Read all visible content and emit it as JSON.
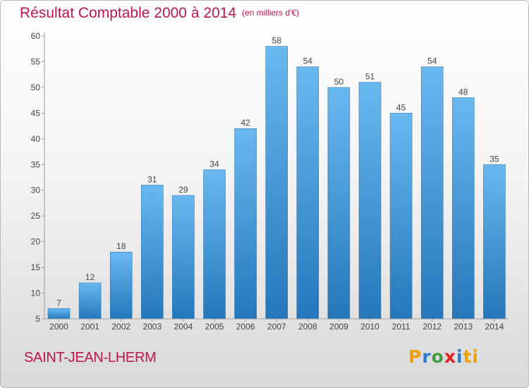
{
  "title": "Résultat Comptable 2000 à 2014",
  "subtitle": "(en milliers d'€)",
  "commune": "SAINT-JEAN-LHERM",
  "logo": {
    "letters": [
      "P",
      "r",
      "o",
      "x",
      "i",
      "ti"
    ],
    "colors": [
      "#f0a000",
      "#2a7ad0",
      "#40a040",
      "#e02020",
      "#2a7ad0",
      "#f0a000"
    ]
  },
  "colors": {
    "title": "#c0144c",
    "bar_top": "#6ab8f0",
    "bar_bottom": "#2478ba"
  },
  "chart_data": {
    "type": "bar",
    "categories": [
      "2000",
      "2001",
      "2002",
      "2003",
      "2004",
      "2005",
      "2006",
      "2007",
      "2008",
      "2009",
      "2010",
      "2011",
      "2012",
      "2013",
      "2014"
    ],
    "values": [
      7,
      12,
      18,
      31,
      29,
      34,
      42,
      58,
      54,
      50,
      51,
      45,
      54,
      48,
      35
    ],
    "yticks": [
      5,
      10,
      15,
      20,
      25,
      30,
      35,
      40,
      45,
      50,
      55,
      60
    ],
    "ylim": [
      5,
      60
    ],
    "grid": false,
    "title": "Résultat Comptable 2000 à 2014",
    "xlabel": "",
    "ylabel": ""
  }
}
